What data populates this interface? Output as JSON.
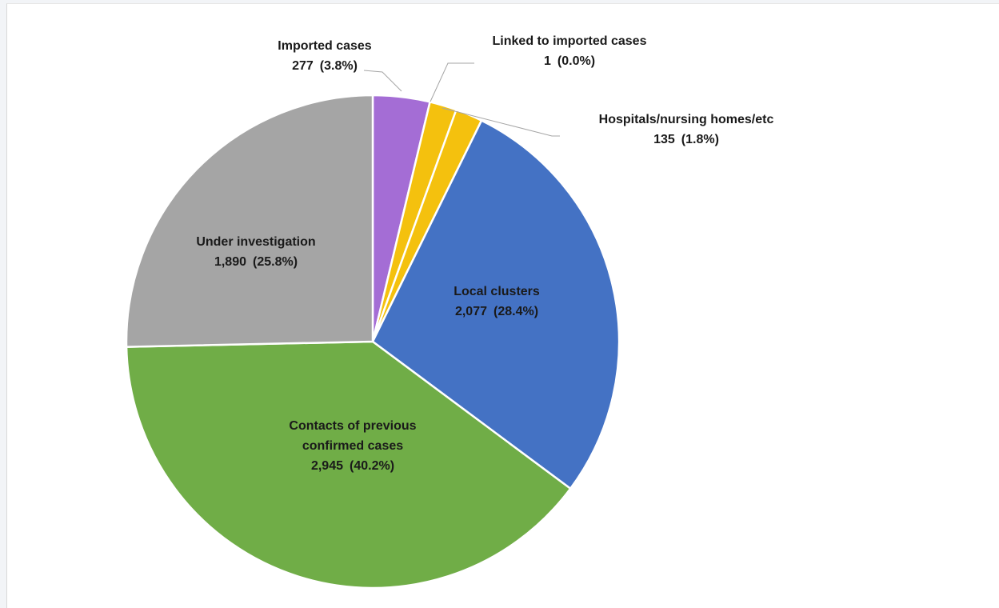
{
  "chart_data": {
    "type": "pie",
    "slices": [
      {
        "label": "Imported cases",
        "value": 277,
        "value_text": "277",
        "pct": 3.8,
        "pct_text": "(3.8%)",
        "color": "#a46dd5"
      },
      {
        "label": "Linked to imported cases",
        "value": 1,
        "value_text": "1",
        "pct": 0.0,
        "pct_text": "(0.0%)",
        "color": "#f4c10e"
      },
      {
        "label": "Hospitals/nursing homes/etc",
        "value": 135,
        "value_text": "135",
        "pct": 1.8,
        "pct_text": "(1.8%)",
        "color": "#f4c10e"
      },
      {
        "label": "Local clusters",
        "value": 2077,
        "value_text": "2,077",
        "pct": 28.4,
        "pct_text": "(28.4%)",
        "color": "#4472c4"
      },
      {
        "label": "Contacts of previous confirmed cases",
        "value": 2945,
        "value_text": "2,945",
        "pct": 40.2,
        "pct_text": "(40.2%)",
        "color": "#70ad47"
      },
      {
        "label": "Under investigation",
        "value": 1890,
        "value_text": "1,890",
        "pct": 25.8,
        "pct_text": "(25.8%)",
        "color": "#a5a5a5"
      }
    ],
    "start_angle": "12 o'clock",
    "direction": "clockwise",
    "legend": "none"
  }
}
